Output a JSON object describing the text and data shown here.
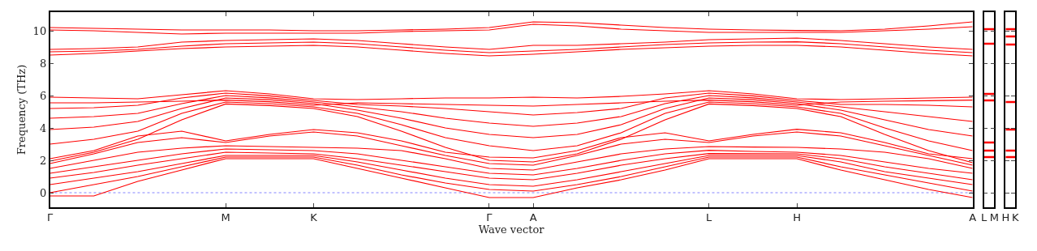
{
  "chart_data": [
    {
      "type": "line",
      "xlabel": "Wave vector",
      "ylabel": "Frequency (THz)",
      "categories": [
        "Γ",
        null,
        null,
        null,
        "M",
        null,
        "K",
        null,
        null,
        null,
        "Γ",
        "A",
        null,
        null,
        null,
        "L",
        null,
        "H",
        null,
        null,
        null,
        "A"
      ],
      "ylim": [
        -0.9,
        11.15
      ],
      "yticks": [
        0,
        2,
        4,
        6,
        8,
        10
      ],
      "grid": false,
      "legend": false,
      "marker": "none",
      "line_style": "solid",
      "ref_lines": [
        {
          "axis": "y",
          "value": 0,
          "color": "#6666ff",
          "line_style": "dotted"
        }
      ],
      "series": [
        {
          "color": "#ff0000",
          "values": [
            10.2,
            10.15,
            10.1,
            10.05,
            10.05,
            10.05,
            10.0,
            10.0,
            10.05,
            10.1,
            10.2,
            10.55,
            10.5,
            10.35,
            10.2,
            10.1,
            10.05,
            10.02,
            10.0,
            10.1,
            10.3,
            10.55
          ]
        },
        {
          "color": "#ff0000",
          "values": [
            10.05,
            10.0,
            9.9,
            9.8,
            9.85,
            9.85,
            9.85,
            9.85,
            9.95,
            10.0,
            10.05,
            10.4,
            10.3,
            10.1,
            10.0,
            9.9,
            9.9,
            9.9,
            9.9,
            10.0,
            10.1,
            10.25
          ]
        },
        {
          "color": "#ff0000",
          "values": [
            8.85,
            8.9,
            9.0,
            9.3,
            9.4,
            9.45,
            9.5,
            9.4,
            9.2,
            9.0,
            8.85,
            9.1,
            9.1,
            9.2,
            9.3,
            9.45,
            9.5,
            9.55,
            9.4,
            9.2,
            9.0,
            8.85
          ]
        },
        {
          "color": "#ff0000",
          "values": [
            8.5,
            8.6,
            8.75,
            8.9,
            9.0,
            9.05,
            9.1,
            9.0,
            8.8,
            8.6,
            8.45,
            8.55,
            8.7,
            8.85,
            8.95,
            9.05,
            9.1,
            9.1,
            9.0,
            8.8,
            8.6,
            8.45
          ]
        },
        {
          "color": "#ff0000",
          "values": [
            8.7,
            8.75,
            8.85,
            9.05,
            9.2,
            9.25,
            9.3,
            9.2,
            9.0,
            8.8,
            8.65,
            8.75,
            8.85,
            9.0,
            9.15,
            9.25,
            9.3,
            9.32,
            9.2,
            9.0,
            8.8,
            8.65
          ]
        },
        {
          "color": "#ff0000",
          "values": [
            5.9,
            5.85,
            5.8,
            6.05,
            6.3,
            6.1,
            5.8,
            5.75,
            5.8,
            5.85,
            5.85,
            5.9,
            5.85,
            5.95,
            6.1,
            6.3,
            6.1,
            5.8,
            5.75,
            5.8,
            5.85,
            5.9
          ]
        },
        {
          "color": "#ff0000",
          "values": [
            5.55,
            5.55,
            5.6,
            5.65,
            5.72,
            5.62,
            5.4,
            5.55,
            5.5,
            5.45,
            5.4,
            5.35,
            5.45,
            5.55,
            5.65,
            5.72,
            5.62,
            5.4,
            5.6,
            5.65,
            5.68,
            5.72
          ]
        },
        {
          "color": "#ff0000",
          "values": [
            5.2,
            5.25,
            5.4,
            5.85,
            6.15,
            5.98,
            5.7,
            5.45,
            5.35,
            5.2,
            5.0,
            4.8,
            4.95,
            5.2,
            5.85,
            6.15,
            5.98,
            5.7,
            5.45,
            5.45,
            5.4,
            5.3
          ]
        },
        {
          "color": "#ff0000",
          "values": [
            4.6,
            4.7,
            4.9,
            5.5,
            6.0,
            5.86,
            5.6,
            5.3,
            5.0,
            4.6,
            4.3,
            4.1,
            4.3,
            4.7,
            5.5,
            6.0,
            5.86,
            5.6,
            5.3,
            5.0,
            4.7,
            4.4
          ]
        },
        {
          "color": "#ff0000",
          "values": [
            3.9,
            4.05,
            4.4,
            5.2,
            5.85,
            5.74,
            5.5,
            5.1,
            4.6,
            4.0,
            3.6,
            3.4,
            3.6,
            4.2,
            5.2,
            5.85,
            5.74,
            5.5,
            5.1,
            4.5,
            3.9,
            3.5
          ]
        },
        {
          "color": "#ff0000",
          "values": [
            3.0,
            3.3,
            3.8,
            4.9,
            5.6,
            5.5,
            5.3,
            4.9,
            4.2,
            3.4,
            2.9,
            2.6,
            2.9,
            3.7,
            4.9,
            5.6,
            5.5,
            5.3,
            4.9,
            4.0,
            3.2,
            2.6
          ]
        },
        {
          "color": "#ff0000",
          "values": [
            1.95,
            2.5,
            3.3,
            4.5,
            5.48,
            5.38,
            5.2,
            4.7,
            3.8,
            2.8,
            2.0,
            1.9,
            2.4,
            3.3,
            4.5,
            5.48,
            5.38,
            5.2,
            4.7,
            3.6,
            2.6,
            1.85
          ]
        },
        {
          "color": "#ff0000",
          "values": [
            2.1,
            2.6,
            3.5,
            3.8,
            3.2,
            3.6,
            3.9,
            3.7,
            3.2,
            2.5,
            2.2,
            2.15,
            2.6,
            3.4,
            3.7,
            3.2,
            3.6,
            3.92,
            3.7,
            3.1,
            2.4,
            2.1
          ]
        },
        {
          "color": "#ff0000",
          "values": [
            1.8,
            2.4,
            3.1,
            3.4,
            3.1,
            3.5,
            3.75,
            3.5,
            2.9,
            2.3,
            1.8,
            1.7,
            2.3,
            3.0,
            3.3,
            3.1,
            3.5,
            3.75,
            3.5,
            2.9,
            2.3,
            1.7
          ]
        },
        {
          "color": "#ff0000",
          "values": [
            1.5,
            2.0,
            2.5,
            2.75,
            2.9,
            2.85,
            2.8,
            2.75,
            2.6,
            2.1,
            1.5,
            1.4,
            1.9,
            2.4,
            2.7,
            2.85,
            2.82,
            2.8,
            2.7,
            2.5,
            2.1,
            1.5
          ]
        },
        {
          "color": "#ff0000",
          "values": [
            1.2,
            1.6,
            2.0,
            2.4,
            2.7,
            2.65,
            2.6,
            2.4,
            2.0,
            1.6,
            1.2,
            1.1,
            1.5,
            2.0,
            2.4,
            2.62,
            2.55,
            2.5,
            2.3,
            1.9,
            1.5,
            1.2
          ]
        },
        {
          "color": "#ff0000",
          "values": [
            0.9,
            1.25,
            1.7,
            2.1,
            2.5,
            2.45,
            2.4,
            2.1,
            1.7,
            1.3,
            0.9,
            0.8,
            1.2,
            1.7,
            2.1,
            2.42,
            2.41,
            2.4,
            2.1,
            1.6,
            1.2,
            0.8
          ]
        },
        {
          "color": "#ff0000",
          "values": [
            0.5,
            0.9,
            1.3,
            1.8,
            2.3,
            2.3,
            2.3,
            1.9,
            1.4,
            0.9,
            0.5,
            0.4,
            0.8,
            1.3,
            1.8,
            2.3,
            2.3,
            2.3,
            1.9,
            1.3,
            0.9,
            0.5
          ]
        },
        {
          "color": "#ff0000",
          "values": [
            0.0,
            0.5,
            1.0,
            1.6,
            2.2,
            2.2,
            2.2,
            1.7,
            1.1,
            0.6,
            0.2,
            0.1,
            0.5,
            1.0,
            1.6,
            2.2,
            2.2,
            2.2,
            1.6,
            1.1,
            0.6,
            0.1
          ]
        },
        {
          "color": "#ff0000",
          "values": [
            -0.2,
            -0.2,
            0.7,
            1.4,
            2.1,
            2.1,
            2.1,
            1.5,
            0.9,
            0.3,
            -0.3,
            -0.3,
            0.3,
            0.8,
            1.4,
            2.1,
            2.1,
            2.1,
            1.4,
            0.8,
            0.2,
            -0.3
          ]
        }
      ]
    },
    {
      "type": "line",
      "categories": [
        "L",
        "M"
      ],
      "ylim": [
        -0.9,
        11.15
      ],
      "yticks": [
        0,
        2,
        4,
        6,
        8,
        10
      ],
      "tick_labels": "x",
      "grid": false,
      "legend": false,
      "marker": "none",
      "line_style": "solid",
      "series": [
        {
          "color": "#ff0000",
          "values": [
            10.1,
            10.1
          ]
        },
        {
          "color": "#ff0000",
          "values": [
            9.2,
            9.2
          ]
        },
        {
          "color": "#ff0000",
          "values": [
            6.1,
            6.1
          ]
        },
        {
          "color": "#ff0000",
          "values": [
            5.7,
            5.7
          ]
        },
        {
          "color": "#ff0000",
          "values": [
            3.1,
            3.1
          ]
        },
        {
          "color": "#ff0000",
          "values": [
            2.6,
            2.6
          ]
        },
        {
          "color": "#ff0000",
          "values": [
            2.2,
            2.2
          ]
        }
      ]
    },
    {
      "type": "line",
      "categories": [
        "H",
        "K"
      ],
      "ylim": [
        -0.9,
        11.15
      ],
      "yticks": [
        0,
        2,
        4,
        6,
        8,
        10
      ],
      "tick_labels": "x",
      "grid": false,
      "legend": false,
      "marker": "none",
      "line_style": "solid",
      "series": [
        {
          "color": "#ff0000",
          "values": [
            10.1,
            10.1
          ]
        },
        {
          "color": "#ff0000",
          "values": [
            9.65,
            9.65
          ]
        },
        {
          "color": "#ff0000",
          "values": [
            9.15,
            9.15
          ]
        },
        {
          "color": "#ff0000",
          "values": [
            5.6,
            5.6
          ]
        },
        {
          "color": "#ff0000",
          "values": [
            3.9,
            3.9
          ]
        },
        {
          "color": "#ff0000",
          "values": [
            2.6,
            2.6
          ]
        },
        {
          "color": "#ff0000",
          "values": [
            2.2,
            2.2
          ]
        }
      ]
    }
  ]
}
